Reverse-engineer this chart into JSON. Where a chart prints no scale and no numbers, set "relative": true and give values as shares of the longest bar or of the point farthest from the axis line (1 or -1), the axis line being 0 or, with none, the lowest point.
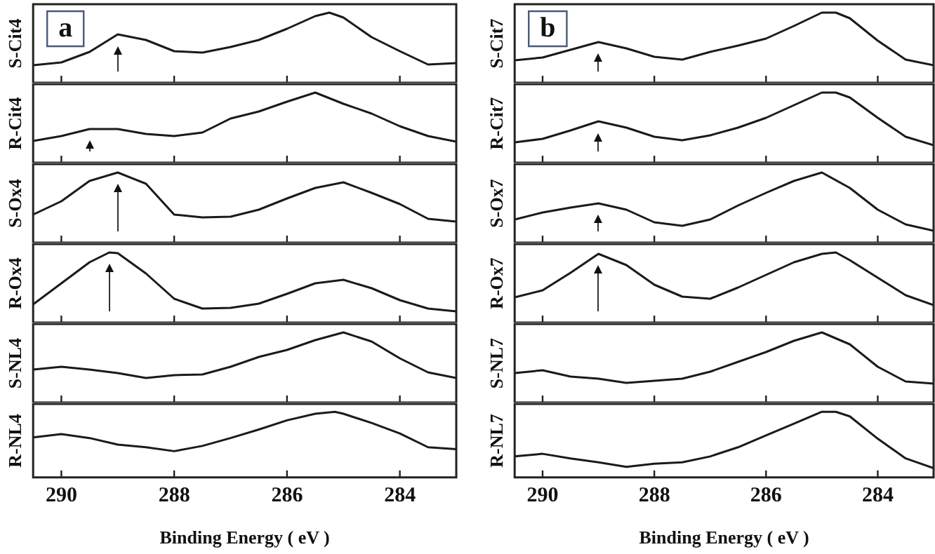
{
  "chart_data": [
    {
      "type": "line",
      "ylabel": "S-Cit4",
      "annotations": [
        "a"
      ],
      "relative": true,
      "xlim": [
        290.5,
        283
      ],
      "xticks": [
        290,
        288,
        286,
        284
      ],
      "tick_labels": false,
      "color": "#1a1a1a",
      "x": [
        290.5,
        290,
        289.5,
        289,
        288.5,
        288,
        287.5,
        287,
        286.5,
        286,
        285.5,
        285.25,
        285,
        284.5,
        284,
        283.5,
        283
      ],
      "values": [
        0.25,
        0.29,
        0.44,
        0.69,
        0.61,
        0.45,
        0.43,
        0.51,
        0.61,
        0.77,
        0.95,
        1.0,
        0.93,
        0.65,
        0.45,
        0.26,
        0.28
      ]
    },
    {
      "type": "line",
      "ylabel": "R-Cit4",
      "relative": true,
      "xlim": [
        290.5,
        283
      ],
      "xticks": [
        290,
        288,
        286,
        284
      ],
      "tick_labels": false,
      "color": "#1a1a1a",
      "x": [
        290.5,
        290,
        289.5,
        289,
        288.5,
        288,
        287.5,
        287,
        286.5,
        286,
        285.5,
        285,
        284.5,
        284,
        283.5,
        283
      ],
      "values": [
        0.31,
        0.38,
        0.48,
        0.48,
        0.41,
        0.38,
        0.43,
        0.63,
        0.73,
        0.87,
        1.0,
        0.84,
        0.7,
        0.52,
        0.38,
        0.3
      ]
    },
    {
      "type": "line",
      "ylabel": "S-Ox4",
      "relative": true,
      "xlim": [
        290.5,
        283
      ],
      "xticks": [
        290,
        288,
        286,
        284
      ],
      "tick_labels": false,
      "color": "#1a1a1a",
      "x": [
        290.5,
        290,
        289.5,
        289,
        288.5,
        288,
        287.5,
        287,
        286.5,
        286,
        285.5,
        285,
        284.5,
        284,
        283.5,
        283
      ],
      "values": [
        0.4,
        0.59,
        0.88,
        1.0,
        0.84,
        0.4,
        0.36,
        0.37,
        0.47,
        0.63,
        0.78,
        0.86,
        0.71,
        0.55,
        0.34,
        0.3
      ]
    },
    {
      "type": "line",
      "ylabel": "R-Ox4",
      "relative": true,
      "xlim": [
        290.5,
        283
      ],
      "xticks": [
        290,
        288,
        286,
        284
      ],
      "tick_labels": false,
      "color": "#1a1a1a",
      "x": [
        290.5,
        290,
        289.5,
        289.15,
        289,
        288.5,
        288,
        287.5,
        287,
        286.5,
        286,
        285.5,
        285,
        284.5,
        284,
        283.5,
        283
      ],
      "values": [
        0.26,
        0.56,
        0.86,
        1.0,
        0.99,
        0.7,
        0.34,
        0.2,
        0.21,
        0.27,
        0.41,
        0.56,
        0.61,
        0.49,
        0.32,
        0.2,
        0.16
      ]
    },
    {
      "type": "line",
      "ylabel": "S-NL4",
      "relative": true,
      "xlim": [
        290.5,
        283
      ],
      "xticks": [
        290,
        288,
        286,
        284
      ],
      "tick_labels": false,
      "color": "#1a1a1a",
      "x": [
        290.5,
        290,
        289.5,
        289,
        288.5,
        288,
        287.5,
        287,
        286.5,
        286,
        285.5,
        285,
        284.5,
        284,
        283.5,
        283
      ],
      "values": [
        0.47,
        0.51,
        0.47,
        0.42,
        0.35,
        0.39,
        0.4,
        0.51,
        0.65,
        0.75,
        0.89,
        1.0,
        0.87,
        0.63,
        0.43,
        0.35
      ]
    },
    {
      "type": "line",
      "ylabel": "R-NL4",
      "xlabel": "Binding Energy ( eV )",
      "relative": true,
      "xlim": [
        290.5,
        283
      ],
      "xticks": [
        290,
        288,
        286,
        284
      ],
      "tick_labels": "x",
      "color": "#1a1a1a",
      "x": [
        290.5,
        290,
        289.5,
        289,
        288.5,
        288,
        287.5,
        287,
        286.5,
        286,
        285.5,
        285.15,
        285,
        284.5,
        284,
        283.5,
        283
      ],
      "values": [
        0.61,
        0.66,
        0.6,
        0.5,
        0.46,
        0.4,
        0.48,
        0.6,
        0.73,
        0.87,
        0.97,
        1.0,
        0.97,
        0.83,
        0.67,
        0.46,
        0.43
      ]
    },
    {
      "type": "line",
      "ylabel": "S-Cit7",
      "annotations": [
        "b"
      ],
      "relative": true,
      "xlim": [
        290.5,
        283
      ],
      "xticks": [
        290,
        288,
        286,
        284
      ],
      "tick_labels": false,
      "color": "#1a1a1a",
      "x": [
        290.5,
        290,
        289.5,
        289,
        288.5,
        288,
        287.5,
        287,
        286.5,
        286,
        285.5,
        285,
        284.75,
        284.5,
        284,
        283.5,
        283
      ],
      "values": [
        0.32,
        0.36,
        0.47,
        0.58,
        0.49,
        0.37,
        0.33,
        0.44,
        0.53,
        0.63,
        0.81,
        1.0,
        1.0,
        0.92,
        0.6,
        0.33,
        0.25
      ]
    },
    {
      "type": "line",
      "ylabel": "R-Cit7",
      "relative": true,
      "xlim": [
        290.5,
        283
      ],
      "xticks": [
        290,
        288,
        286,
        284
      ],
      "tick_labels": false,
      "color": "#1a1a1a",
      "x": [
        290.5,
        290,
        289.5,
        289,
        288.5,
        288,
        287.5,
        287,
        286.5,
        286,
        285.5,
        285,
        284.75,
        284.5,
        284,
        283.5,
        283
      ],
      "values": [
        0.29,
        0.34,
        0.46,
        0.59,
        0.5,
        0.37,
        0.32,
        0.39,
        0.5,
        0.64,
        0.82,
        1.0,
        1.0,
        0.93,
        0.64,
        0.37,
        0.25
      ]
    },
    {
      "type": "line",
      "ylabel": "S-Ox7",
      "relative": true,
      "xlim": [
        290.5,
        283
      ],
      "xticks": [
        290,
        288,
        286,
        284
      ],
      "tick_labels": false,
      "color": "#1a1a1a",
      "x": [
        290.5,
        290,
        289.5,
        289,
        288.5,
        288,
        287.5,
        287,
        286.5,
        286,
        285.5,
        285,
        284.5,
        284,
        283.5,
        283
      ],
      "values": [
        0.33,
        0.43,
        0.5,
        0.56,
        0.47,
        0.29,
        0.24,
        0.33,
        0.53,
        0.71,
        0.88,
        1.0,
        0.78,
        0.47,
        0.26,
        0.17
      ]
    },
    {
      "type": "line",
      "ylabel": "R-Ox7",
      "relative": true,
      "xlim": [
        290.5,
        283
      ],
      "xticks": [
        290,
        288,
        286,
        284
      ],
      "tick_labels": false,
      "color": "#1a1a1a",
      "x": [
        290.5,
        290,
        289.5,
        289,
        288.5,
        288,
        287.5,
        287,
        286.5,
        286,
        285.5,
        285,
        284.75,
        284.5,
        284,
        283.5,
        283
      ],
      "values": [
        0.36,
        0.46,
        0.71,
        0.98,
        0.82,
        0.54,
        0.37,
        0.34,
        0.5,
        0.68,
        0.86,
        0.98,
        1.0,
        0.89,
        0.64,
        0.39,
        0.25
      ]
    },
    {
      "type": "line",
      "ylabel": "S-NL7",
      "relative": true,
      "xlim": [
        290.5,
        283
      ],
      "xticks": [
        290,
        288,
        286,
        284
      ],
      "tick_labels": false,
      "color": "#1a1a1a",
      "x": [
        290.5,
        290,
        289.5,
        289,
        288.5,
        288,
        287.5,
        287,
        286.5,
        286,
        285.5,
        285,
        284.5,
        284,
        283.5,
        283
      ],
      "values": [
        0.42,
        0.46,
        0.37,
        0.34,
        0.28,
        0.31,
        0.34,
        0.44,
        0.58,
        0.72,
        0.88,
        1.0,
        0.83,
        0.51,
        0.3,
        0.27
      ]
    },
    {
      "type": "line",
      "ylabel": "R-NL7",
      "xlabel": "Binding Energy ( eV )",
      "relative": true,
      "xlim": [
        290.5,
        283
      ],
      "xticks": [
        290,
        288,
        286,
        284
      ],
      "tick_labels": "x",
      "color": "#1a1a1a",
      "x": [
        290.5,
        290,
        289.5,
        289,
        288.5,
        288,
        287.5,
        287,
        286.5,
        286,
        285.5,
        285,
        284.75,
        284.5,
        284,
        283.5,
        283
      ],
      "values": [
        0.32,
        0.36,
        0.29,
        0.23,
        0.16,
        0.21,
        0.23,
        0.32,
        0.46,
        0.64,
        0.82,
        1.0,
        1.0,
        0.93,
        0.59,
        0.29,
        0.14
      ]
    }
  ]
}
